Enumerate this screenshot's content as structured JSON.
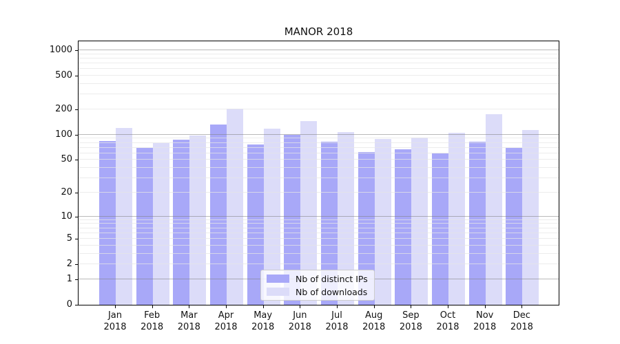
{
  "chart_data": {
    "type": "bar",
    "title": "MANOR 2018",
    "categories": [
      "Jan 2018",
      "Feb 2018",
      "Mar 2018",
      "Apr 2018",
      "May 2018",
      "Jun 2018",
      "Jul 2018",
      "Aug 2018",
      "Sep 2018",
      "Oct 2018",
      "Nov 2018",
      "Dec 2018"
    ],
    "series": [
      {
        "name": "Nb of distinct IPs",
        "color": "#a8a8f8",
        "values": [
          84,
          70,
          88,
          133,
          77,
          100,
          82,
          62,
          67,
          60,
          83,
          70
        ]
      },
      {
        "name": "Nb of downloads",
        "color": "#dcdcf9",
        "values": [
          120,
          80,
          98,
          205,
          119,
          146,
          108,
          89,
          93,
          105,
          176,
          114
        ]
      }
    ],
    "xlabel": "",
    "ylabel": "",
    "yscale": "log10(value+1)",
    "yticks": [
      0,
      1,
      2,
      5,
      10,
      20,
      50,
      100,
      200,
      500,
      1000
    ],
    "ylim": [
      0,
      1300
    ],
    "grid": "both, horizontal only",
    "legend_position": "inside lower center"
  },
  "legend": {
    "items": [
      {
        "label": "Nb of distinct IPs",
        "color": "#a8a8f8"
      },
      {
        "label": "Nb of downloads",
        "color": "#dcdcf9"
      }
    ]
  },
  "colors": {
    "bar_ips": "#a8a8f8",
    "bar_downloads": "#dcdcf9",
    "grid_major": "#808080",
    "grid_minor": "#e5e5e5",
    "spine": "#000000",
    "background": "#ffffff"
  }
}
